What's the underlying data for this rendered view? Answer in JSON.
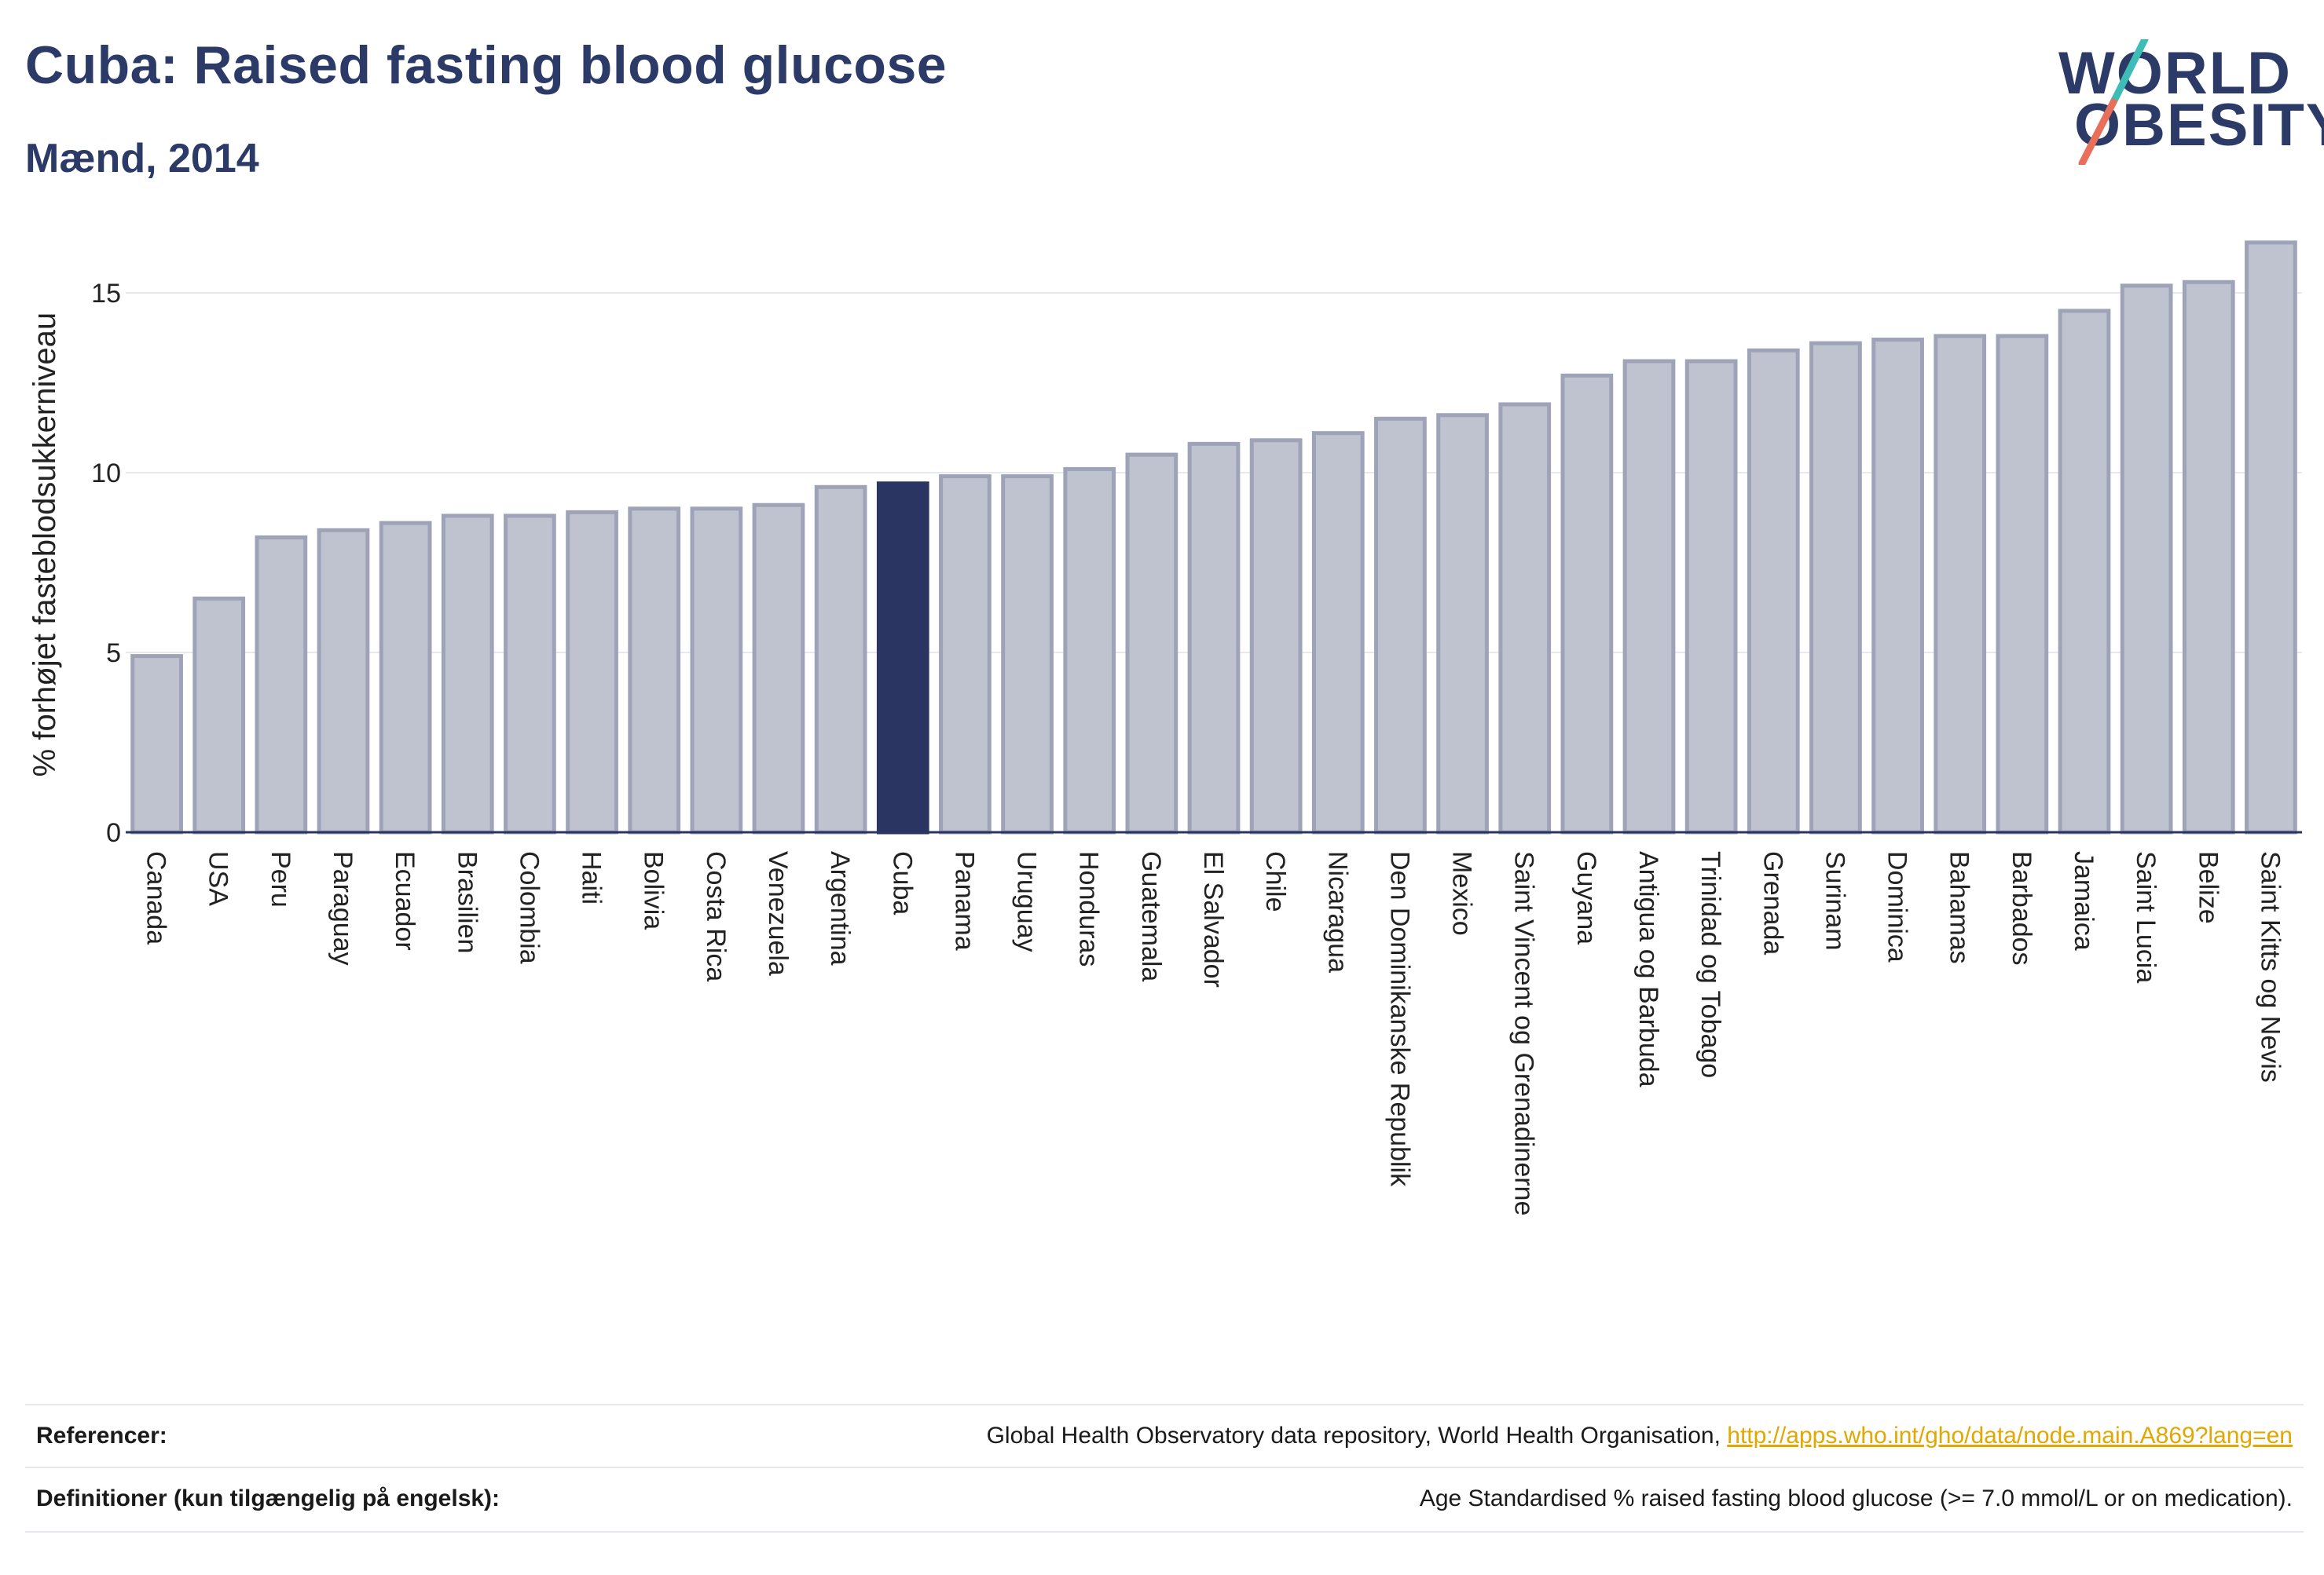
{
  "header": {
    "title": "Cuba: Raised fasting blood glucose",
    "subtitle": "Mænd, 2014"
  },
  "logo": {
    "line1": "WORLD",
    "line2": "OBESITY",
    "slash_colors": [
      "#3dbdb5",
      "#e8705a"
    ]
  },
  "colors": {
    "bar": "#bfc2cf",
    "bar_border": "#9ea3b8",
    "highlight": "#2b3561",
    "grid": "#e8e9ee",
    "axis": "#2b3561"
  },
  "chart_data": {
    "type": "bar",
    "title": "",
    "xlabel": "",
    "ylabel": "% forhøjet fasteblodsukkerniveau",
    "ylim": [
      0,
      17
    ],
    "yticks": [
      0,
      5,
      10,
      15
    ],
    "grid": true,
    "highlight": "Cuba",
    "categories": [
      "Canada",
      "USA",
      "Peru",
      "Paraguay",
      "Ecuador",
      "Brasilien",
      "Colombia",
      "Haiti",
      "Bolivia",
      "Costa Rica",
      "Venezuela",
      "Argentina",
      "Cuba",
      "Panama",
      "Uruguay",
      "Honduras",
      "Guatemala",
      "El Salvador",
      "Chile",
      "Nicaragua",
      "Den Dominikanske Republik",
      "Mexico",
      "Saint Vincent og Grenadinerne",
      "Guyana",
      "Antigua og Barbuda",
      "Trinidad og Tobago",
      "Grenada",
      "Surinam",
      "Dominica",
      "Bahamas",
      "Barbados",
      "Jamaica",
      "Saint Lucia",
      "Belize",
      "Saint Kitts og Nevis"
    ],
    "values": [
      4.9,
      6.5,
      8.2,
      8.4,
      8.6,
      8.8,
      8.8,
      8.9,
      9.0,
      9.0,
      9.1,
      9.6,
      9.7,
      9.9,
      9.9,
      10.1,
      10.5,
      10.8,
      10.9,
      11.1,
      11.5,
      11.6,
      11.9,
      12.7,
      13.1,
      13.1,
      13.4,
      13.6,
      13.7,
      13.8,
      13.8,
      14.5,
      15.2,
      15.3,
      16.4
    ]
  },
  "footer": {
    "references_label": "Referencer:",
    "references_text": "Global Health Observatory data repository, World Health Organisation, ",
    "references_link": "http://apps.who.int/gho/data/node.main.A869?lang=en",
    "definitions_label": "Definitioner (kun tilgængelig på engelsk):",
    "definitions_text": "Age Standardised % raised fasting blood glucose (>= 7.0 mmol/L or on medication)."
  }
}
